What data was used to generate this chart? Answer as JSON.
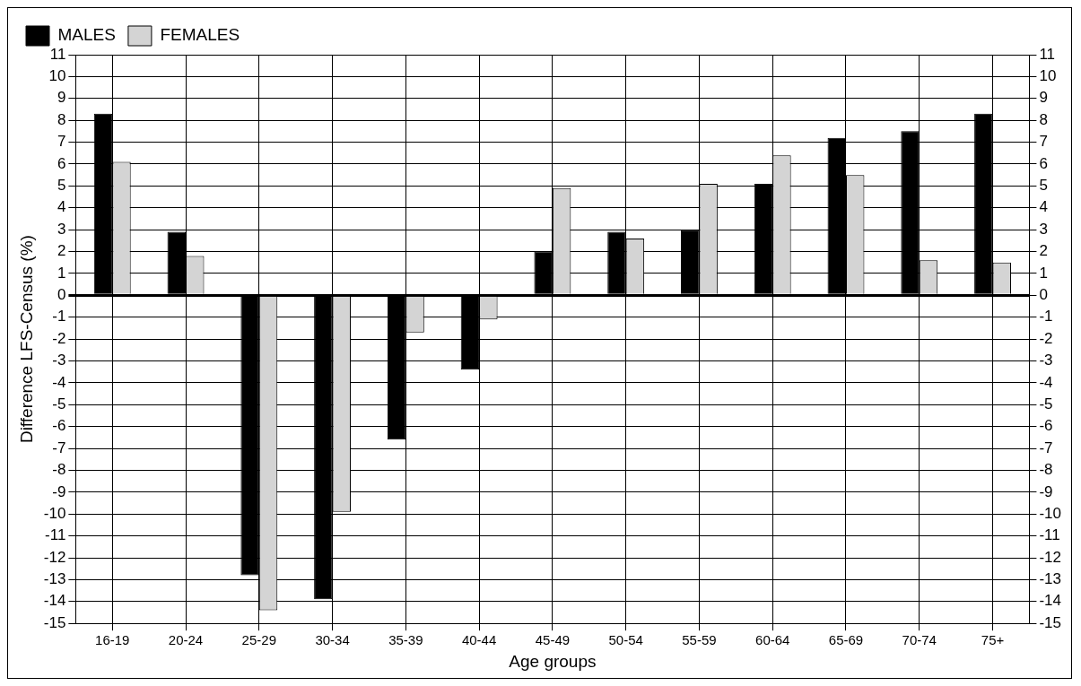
{
  "chart_data": {
    "type": "bar",
    "xlabel": "Age groups",
    "ylabel": "Difference LFS-Census (%)",
    "categories": [
      "16-19",
      "20-24",
      "25-29",
      "30-34",
      "35-39",
      "40-44",
      "45-49",
      "50-54",
      "55-59",
      "60-64",
      "65-69",
      "70-74",
      "75+"
    ],
    "series": [
      {
        "name": "MALES",
        "color": "#000000",
        "values": [
          8.3,
          2.9,
          -12.8,
          -13.9,
          -6.6,
          -3.4,
          2.0,
          2.9,
          3.0,
          5.1,
          7.2,
          7.5,
          8.3
        ]
      },
      {
        "name": "FEMALES",
        "color": "#d4d4d4",
        "values": [
          6.1,
          1.8,
          -14.4,
          -9.9,
          -1.7,
          -1.1,
          4.9,
          2.6,
          5.1,
          6.4,
          5.5,
          1.6,
          1.5
        ]
      }
    ],
    "ylim": [
      -15,
      11
    ],
    "yticks": [
      -15,
      -14,
      -13,
      -12,
      -11,
      -10,
      -9,
      -8,
      -7,
      -6,
      -5,
      -4,
      -3,
      -2,
      -1,
      0,
      1,
      2,
      3,
      4,
      5,
      6,
      7,
      8,
      9,
      10,
      11
    ],
    "y2lim": [
      -15,
      11
    ],
    "y2ticks": [
      -15,
      -14,
      -13,
      -12,
      -11,
      -10,
      -9,
      -8,
      -7,
      -6,
      -5,
      -4,
      -3,
      -2,
      -1,
      0,
      1,
      2,
      3,
      4,
      5,
      6,
      7,
      8,
      9,
      10,
      11
    ],
    "grid": true,
    "legend": "top left"
  }
}
